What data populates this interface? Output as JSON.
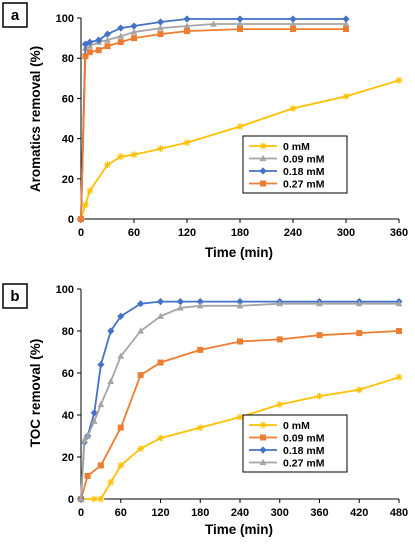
{
  "chart_data": [
    {
      "type": "line",
      "panel_label": "a",
      "xlabel": "Time (min)",
      "ylabel": "Aromatics removal (%)",
      "xlim": [
        0,
        360
      ],
      "ylim": [
        0,
        100
      ],
      "xticks": [
        0,
        60,
        120,
        180,
        240,
        300,
        360
      ],
      "yticks": [
        0,
        20,
        40,
        60,
        80,
        100
      ],
      "grid": false,
      "legend_position": "center-right",
      "series": [
        {
          "name": "0 mM",
          "color": "#FFC000",
          "marker": "asterisk",
          "x": [
            0,
            5,
            10,
            30,
            45,
            60,
            90,
            120,
            180,
            240,
            300,
            360
          ],
          "y": [
            0,
            7,
            14,
            27,
            31,
            32,
            35,
            38,
            46,
            55,
            61,
            69
          ]
        },
        {
          "name": "0.09 mM",
          "color": "#A5A5A5",
          "marker": "triangle",
          "x": [
            0,
            5,
            10,
            20,
            30,
            45,
            60,
            90,
            120,
            150,
            180,
            240,
            300
          ],
          "y": [
            0,
            85,
            86,
            88,
            89,
            91,
            93,
            95,
            96,
            97,
            97,
            97,
            97
          ]
        },
        {
          "name": "0.18 mM",
          "color": "#4472C4",
          "marker": "diamond",
          "x": [
            0,
            5,
            10,
            20,
            30,
            45,
            60,
            90,
            120,
            180,
            240,
            300
          ],
          "y": [
            0,
            87,
            88,
            89,
            92,
            95,
            96,
            98,
            99.5,
            99.5,
            99.5,
            99.5
          ]
        },
        {
          "name": "0.27 mM",
          "color": "#ED7D31",
          "marker": "square",
          "x": [
            0,
            5,
            10,
            20,
            30,
            45,
            60,
            90,
            120,
            180,
            240,
            300
          ],
          "y": [
            0,
            81,
            83,
            84,
            86,
            88,
            90,
            92,
            93.5,
            94.5,
            94.5,
            94.5
          ]
        }
      ]
    },
    {
      "type": "line",
      "panel_label": "b",
      "xlabel": "Time (min)",
      "ylabel": "TOC removal (%)",
      "xlim": [
        0,
        480
      ],
      "ylim": [
        0,
        100
      ],
      "xticks": [
        0,
        60,
        120,
        180,
        240,
        300,
        360,
        420,
        480
      ],
      "yticks": [
        0,
        20,
        40,
        60,
        80,
        100
      ],
      "grid": false,
      "legend_position": "bottom-right",
      "series": [
        {
          "name": "0 mM",
          "color": "#FFC000",
          "marker": "asterisk",
          "x": [
            0,
            20,
            30,
            45,
            60,
            90,
            120,
            180,
            240,
            300,
            360,
            420,
            480
          ],
          "y": [
            0,
            0,
            0,
            8,
            16,
            24,
            29,
            34,
            39,
            45,
            49,
            52,
            58
          ]
        },
        {
          "name": "0.09 mM",
          "color": "#ED7D31",
          "marker": "square",
          "x": [
            0,
            10,
            30,
            60,
            90,
            120,
            180,
            240,
            300,
            360,
            420,
            480
          ],
          "y": [
            0,
            11,
            16,
            34,
            59,
            65,
            71,
            75,
            76,
            78,
            79,
            80
          ]
        },
        {
          "name": "0.18 mM",
          "color": "#4472C4",
          "marker": "diamond",
          "x": [
            0,
            5,
            10,
            20,
            30,
            45,
            60,
            90,
            120,
            150,
            180,
            240,
            300,
            360,
            420,
            480
          ],
          "y": [
            0,
            27,
            30,
            41,
            64,
            80,
            87,
            93,
            94,
            94,
            94,
            94,
            94,
            94,
            94,
            94
          ]
        },
        {
          "name": "0.27 mM",
          "color": "#A5A5A5",
          "marker": "triangle",
          "x": [
            0,
            5,
            10,
            20,
            30,
            45,
            60,
            90,
            120,
            150,
            180,
            240,
            300,
            360,
            420,
            480
          ],
          "y": [
            0,
            28,
            30,
            37,
            45,
            56,
            68,
            80,
            87,
            91,
            92,
            92,
            93,
            93,
            93,
            93
          ]
        }
      ]
    }
  ]
}
